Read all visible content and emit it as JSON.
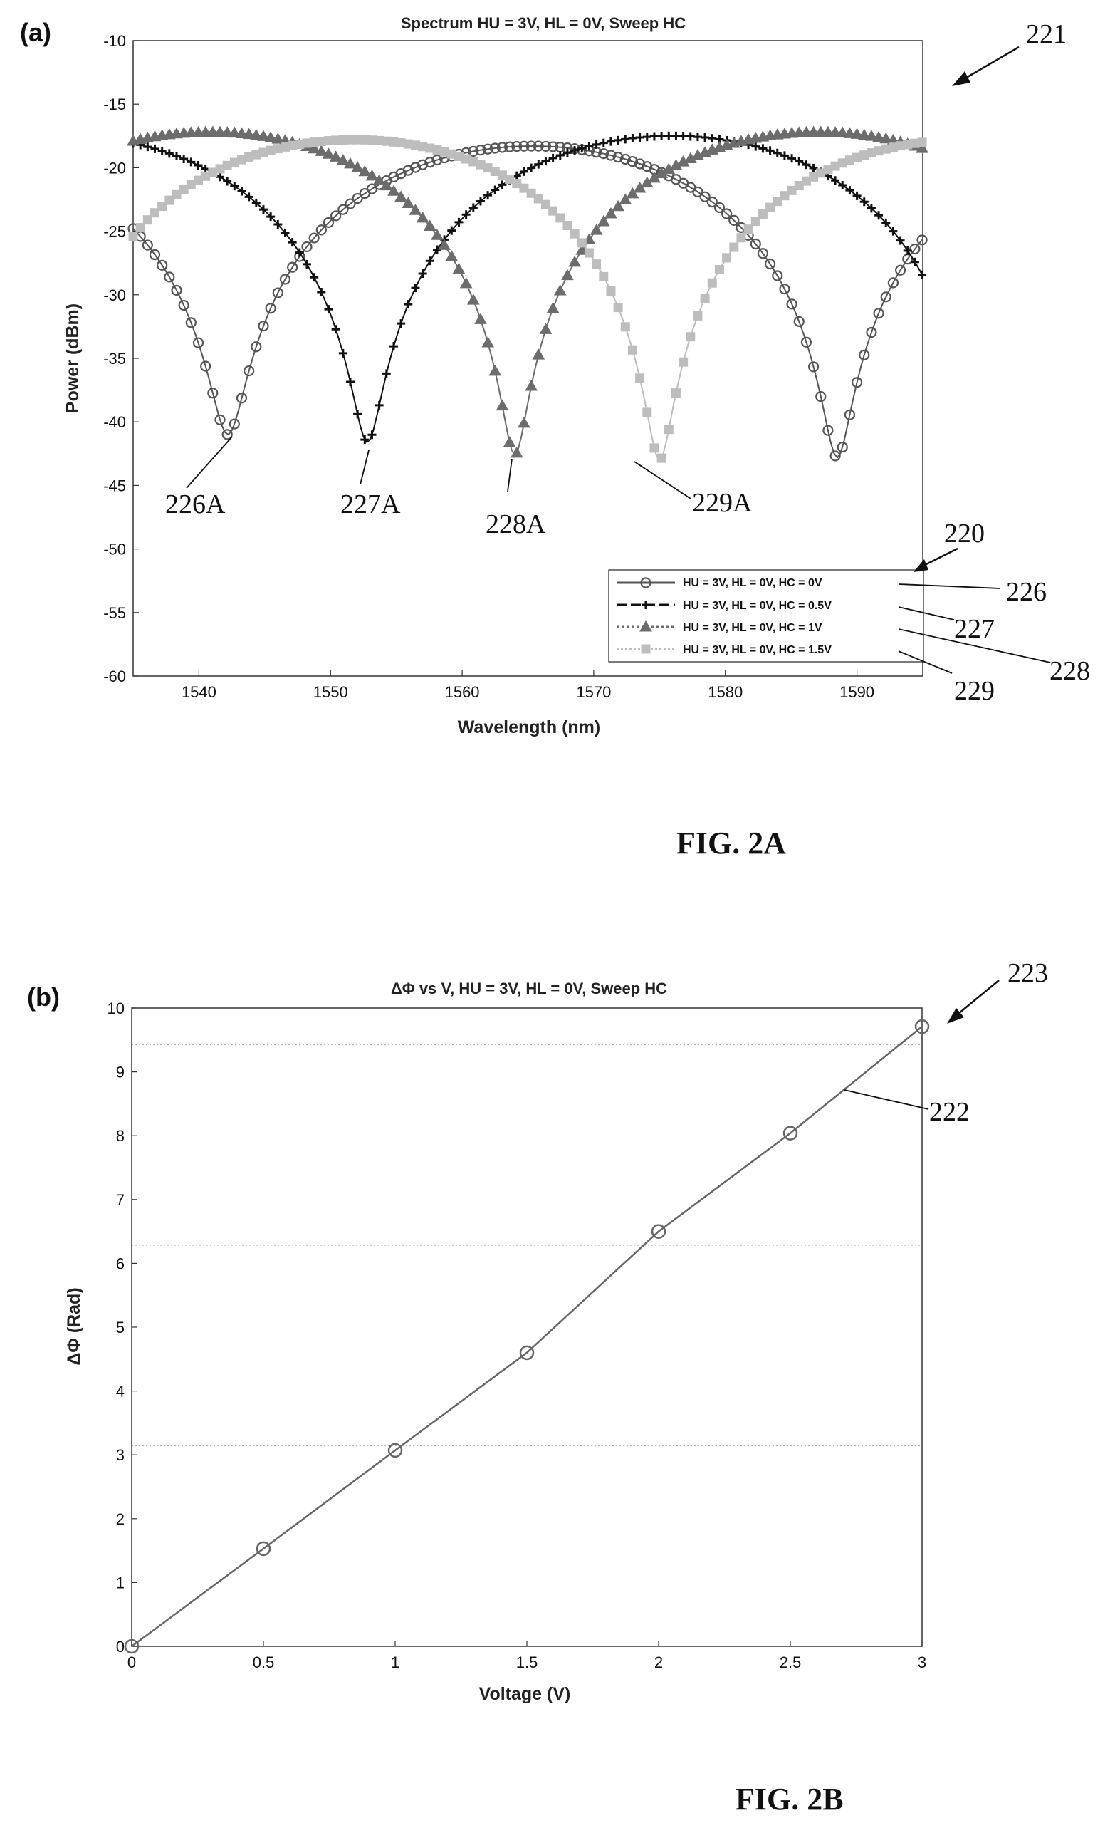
{
  "panels": [
    {
      "tag": "(a)",
      "caption": "FIG. 2A",
      "ref_figure": "221",
      "ref_legend": "220",
      "chart_data": {
        "type": "line",
        "title": "Spectrum HU = 3V, HL = 0V, Sweep HC",
        "xlabel": "Wavelength (nm)",
        "ylabel": "Power (dBm)",
        "xlim": [
          1535,
          1595
        ],
        "ylim": [
          -60,
          -10
        ],
        "xticks": [
          1540,
          1550,
          1560,
          1570,
          1580,
          1590
        ],
        "yticks": [
          -10,
          -15,
          -20,
          -25,
          -30,
          -35,
          -40,
          -45,
          -50,
          -55,
          -60
        ],
        "grid": false,
        "legend_position": "bottom-right",
        "series": [
          {
            "name": "HU = 3V, HL = 0V, HC = 0V",
            "marker": "circle",
            "color": "#555555",
            "ref": "226",
            "dip_label": "226A",
            "dips": [
              [
                1542.2,
                -41.0
              ],
              [
                1588.5,
                -42.8
              ]
            ],
            "peaks": [
              [
                1565.3,
                -18.3
              ]
            ],
            "fsr": 46.3
          },
          {
            "name": "HU = 3V, HL = 0V, HC = 0.5V",
            "marker": "plus",
            "color": "#111111",
            "ref": "227",
            "dip_label": "227A",
            "dips": [
              [
                1552.8,
                -41.6
              ]
            ],
            "peaks": [
              [
                1529.6,
                -17.5
              ],
              [
                1576.0,
                -18.6
              ]
            ],
            "fsr": 46.3
          },
          {
            "name": "HU = 3V, HL = 0V, HC = 1V",
            "marker": "triangle",
            "color": "#6c6c6c",
            "ref": "228",
            "dip_label": "228A",
            "dips": [
              [
                1564.0,
                -42.6
              ]
            ],
            "peaks": [
              [
                1540.8,
                -17.2
              ],
              [
                1587.2,
                -18.2
              ]
            ],
            "fsr": 46.3
          },
          {
            "name": "HU = 3V, HL = 0V, HC = 1.5V",
            "marker": "square",
            "color": "#bdbdbd",
            "ref": "229",
            "dip_label": "229A",
            "dips": [
              [
                1575.0,
                -43.0
              ]
            ],
            "peaks": [
              [
                1551.8,
                -17.8
              ],
              [
                1598.2,
                -18.5
              ]
            ],
            "fsr": 46.3
          }
        ]
      }
    },
    {
      "tag": "(b)",
      "caption": "FIG. 2B",
      "ref_figure": "223",
      "ref_line": "222",
      "chart_data": {
        "type": "line",
        "title": "ΔΦ vs V, HU = 3V, HL = 0V, Sweep HC",
        "xlabel": "Voltage (V)",
        "ylabel": "ΔΦ (Rad)",
        "xlim": [
          0,
          3
        ],
        "ylim": [
          0,
          10
        ],
        "xticks": [
          0,
          0.5,
          1,
          1.5,
          2,
          2.5,
          3
        ],
        "xtick_labels": [
          "0",
          "0.5",
          "1",
          "1.5",
          "2",
          "2.5",
          "3"
        ],
        "yticks": [
          0,
          1,
          2,
          3,
          4,
          5,
          6,
          7,
          8,
          9,
          10
        ],
        "reference_lines_y": [
          3.1416,
          6.2832,
          9.4248
        ],
        "series": [
          {
            "name": "",
            "marker": "circle",
            "color": "#666666",
            "x": [
              0,
              0.5,
              1,
              1.5,
              2,
              2.5,
              3
            ],
            "y": [
              0,
              1.53,
              3.07,
              4.6,
              6.5,
              8.04,
              9.71
            ]
          }
        ]
      }
    }
  ]
}
